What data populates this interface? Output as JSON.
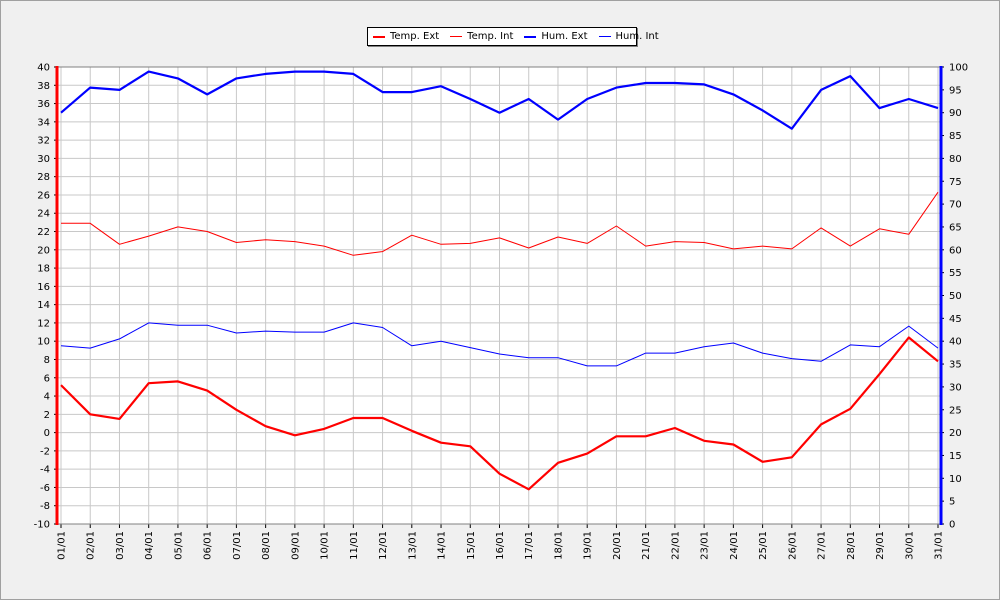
{
  "chart_data": {
    "type": "line",
    "title": "",
    "categories": [
      "01/01",
      "02/01",
      "03/01",
      "04/01",
      "05/01",
      "06/01",
      "07/01",
      "08/01",
      "09/01",
      "10/01",
      "11/01",
      "12/01",
      "13/01",
      "14/01",
      "15/01",
      "16/01",
      "17/01",
      "18/01",
      "19/01",
      "20/01",
      "21/01",
      "22/01",
      "23/01",
      "24/01",
      "25/01",
      "26/01",
      "27/01",
      "28/01",
      "29/01",
      "30/01",
      "31/01"
    ],
    "y_left": {
      "min": -10,
      "max": 40,
      "step": 2
    },
    "y_right": {
      "min": 0,
      "max": 100,
      "step": 5
    },
    "grid": true,
    "legend_position": "top-center",
    "series": [
      {
        "name": "Temp. Ext",
        "axis": "left",
        "color": "#ff0000",
        "width": 2.2,
        "values": [
          5.2,
          2.0,
          1.5,
          5.4,
          5.6,
          4.6,
          2.5,
          0.7,
          -0.3,
          0.4,
          1.6,
          1.6,
          0.2,
          -1.1,
          -1.5,
          -4.5,
          -6.2,
          -3.3,
          -2.3,
          -0.4,
          -0.4,
          0.5,
          -0.9,
          -1.3,
          -3.2,
          -2.7,
          0.9,
          2.6,
          6.4,
          10.4,
          7.8
        ]
      },
      {
        "name": "Temp. Int",
        "axis": "left",
        "color": "#ff0000",
        "width": 1,
        "values": [
          22.9,
          22.9,
          20.6,
          21.5,
          22.5,
          22.0,
          20.8,
          21.1,
          20.9,
          20.4,
          19.4,
          19.8,
          21.6,
          20.6,
          20.7,
          21.3,
          20.2,
          21.4,
          20.7,
          22.6,
          20.4,
          20.9,
          20.8,
          20.1,
          20.4,
          20.1,
          22.4,
          20.4,
          22.3,
          21.7,
          26.3
        ]
      },
      {
        "name": "Hum. Ext",
        "axis": "right",
        "color": "#0000ff",
        "width": 2.2,
        "values": [
          90,
          95.5,
          95,
          99,
          97.5,
          94,
          97.5,
          98.5,
          99,
          99,
          98.5,
          94.5,
          94.5,
          95.8,
          93,
          90,
          93,
          88.5,
          93,
          95.5,
          96.5,
          96.5,
          96.2,
          94,
          90.5,
          86.5,
          95,
          98,
          91,
          93,
          91
        ]
      },
      {
        "name": "Hum. Int",
        "axis": "right",
        "color": "#0000ff",
        "width": 1,
        "values": [
          39,
          38.5,
          40.5,
          44,
          43.5,
          43.5,
          41.8,
          42.2,
          42,
          42,
          44,
          43,
          39,
          40,
          38.6,
          37.2,
          36.4,
          36.4,
          34.6,
          34.6,
          37.4,
          37.4,
          38.8,
          39.6,
          37.4,
          36.2,
          35.6,
          39.2,
          38.8,
          43.3,
          38.5
        ]
      }
    ]
  }
}
